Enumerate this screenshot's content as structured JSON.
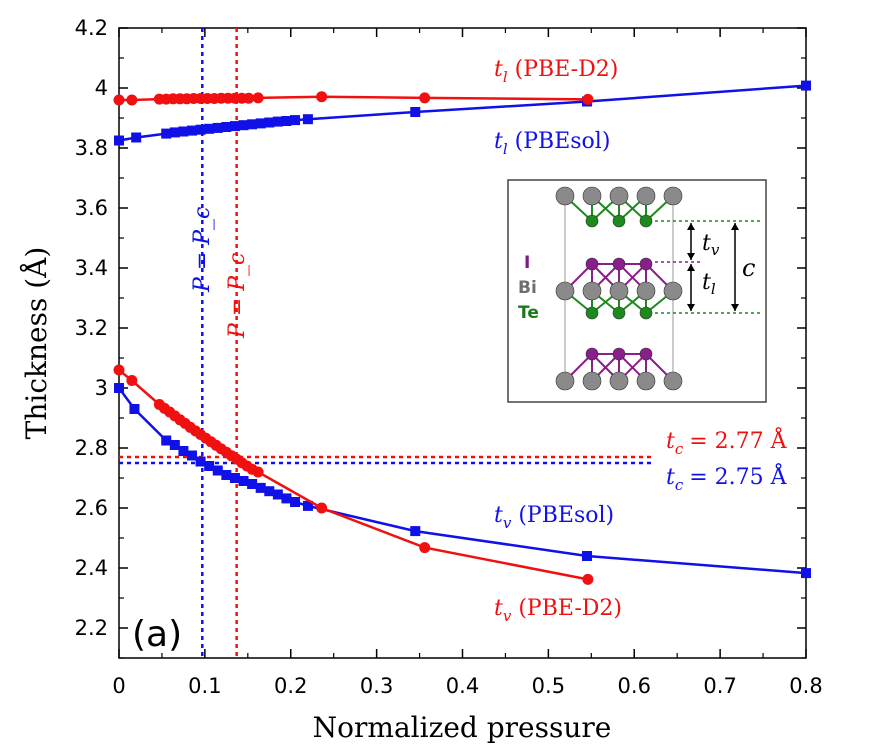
{
  "chart_data": {
    "type": "line",
    "panel_label": "(a)",
    "xlabel": "Normalized pressure",
    "ylabel": "Thickness (Å)",
    "xlim": [
      0,
      0.8
    ],
    "ylim": [
      2.1,
      4.2
    ],
    "xticks": [
      "0",
      "0.1",
      "0.2",
      "0.3",
      "0.4",
      "0.5",
      "0.6",
      "0.7",
      "0.8"
    ],
    "yticks": [
      "2.2",
      "2.4",
      "2.6",
      "2.8",
      "3",
      "3.2",
      "3.4",
      "3.6",
      "3.8",
      "4",
      "4.2"
    ],
    "series": [
      {
        "name": "tl_pbesol",
        "label_base": "t",
        "label_sub": "l",
        "label_method": "(PBEsol)",
        "color": "#1010e8",
        "marker": "square",
        "x": [
          0,
          0.02,
          0.055,
          0.065,
          0.075,
          0.085,
          0.095,
          0.105,
          0.115,
          0.125,
          0.135,
          0.145,
          0.155,
          0.165,
          0.175,
          0.185,
          0.195,
          0.205,
          0.22,
          0.345,
          0.545,
          0.8
        ],
        "y": [
          3.825,
          3.835,
          3.848,
          3.852,
          3.855,
          3.858,
          3.861,
          3.864,
          3.867,
          3.87,
          3.873,
          3.876,
          3.879,
          3.882,
          3.885,
          3.888,
          3.89,
          3.893,
          3.896,
          3.92,
          3.955,
          4.008
        ]
      },
      {
        "name": "tl_pbed2",
        "label_base": "t",
        "label_sub": "l",
        "label_method": "(PBE-D2)",
        "color": "#f01010",
        "marker": "circle",
        "x": [
          0,
          0.015,
          0.047,
          0.055,
          0.063,
          0.071,
          0.079,
          0.087,
          0.095,
          0.103,
          0.111,
          0.119,
          0.127,
          0.135,
          0.143,
          0.151,
          0.162,
          0.236,
          0.356,
          0.546
        ],
        "y": [
          3.96,
          3.96,
          3.963,
          3.963,
          3.964,
          3.964,
          3.964,
          3.965,
          3.965,
          3.965,
          3.965,
          3.966,
          3.966,
          3.966,
          3.966,
          3.966,
          3.967,
          3.971,
          3.967,
          3.962
        ]
      },
      {
        "name": "tv_pbesol",
        "label_base": "t",
        "label_sub": "v",
        "label_method": "(PBEsol)",
        "color": "#1010e8",
        "marker": "square",
        "x": [
          0,
          0.018,
          0.055,
          0.065,
          0.075,
          0.085,
          0.095,
          0.105,
          0.115,
          0.125,
          0.135,
          0.145,
          0.155,
          0.165,
          0.175,
          0.185,
          0.195,
          0.205,
          0.22,
          0.345,
          0.545,
          0.8
        ],
        "y": [
          3.0,
          2.93,
          2.825,
          2.81,
          2.79,
          2.775,
          2.755,
          2.74,
          2.725,
          2.71,
          2.7,
          2.69,
          2.68,
          2.667,
          2.656,
          2.645,
          2.632,
          2.62,
          2.607,
          2.523,
          2.44,
          2.383
        ]
      },
      {
        "name": "tv_pbed2",
        "label_base": "t",
        "label_sub": "v",
        "label_method": "(PBE-D2)",
        "color": "#f01010",
        "marker": "circle",
        "x": [
          0,
          0.015,
          0.047,
          0.053,
          0.059,
          0.065,
          0.071,
          0.077,
          0.083,
          0.089,
          0.095,
          0.101,
          0.107,
          0.113,
          0.119,
          0.125,
          0.131,
          0.137,
          0.143,
          0.149,
          0.155,
          0.162,
          0.236,
          0.356,
          0.546
        ],
        "y": [
          3.06,
          3.025,
          2.945,
          2.932,
          2.92,
          2.907,
          2.894,
          2.882,
          2.869,
          2.857,
          2.845,
          2.833,
          2.821,
          2.809,
          2.797,
          2.786,
          2.774,
          2.763,
          2.751,
          2.74,
          2.729,
          2.72,
          2.6,
          2.468,
          2.362
        ]
      }
    ],
    "reference_lines": [
      {
        "name": "pc-pbesol",
        "orientation": "vertical",
        "x": 0.097,
        "color": "#1010e8",
        "label": "P = P_c"
      },
      {
        "name": "pc-pbed2",
        "orientation": "vertical",
        "x": 0.137,
        "color": "#f01010",
        "label": "P = P_c"
      },
      {
        "name": "tc-pbed2",
        "orientation": "horizontal",
        "y": 2.77,
        "x_end": 0.62,
        "color": "#f01010",
        "label_base": "t",
        "label_sub": "c",
        "label_value": "= 2.77 Å"
      },
      {
        "name": "tc-pbesol",
        "orientation": "horizontal",
        "y": 2.75,
        "x_end": 0.62,
        "color": "#1010e8",
        "label_base": "t",
        "label_sub": "c",
        "label_value": "= 2.75 Å"
      }
    ],
    "inset": {
      "legend": [
        {
          "label": "I",
          "color": "#7b1a87"
        },
        {
          "label": "Bi",
          "color": "#6e6e6e"
        },
        {
          "label": "Te",
          "color": "#1a7a1a"
        }
      ],
      "dimension_labels": {
        "tv_base": "t",
        "tv_sub": "v",
        "tl_base": "t",
        "tl_sub": "l",
        "c": "c"
      }
    }
  }
}
